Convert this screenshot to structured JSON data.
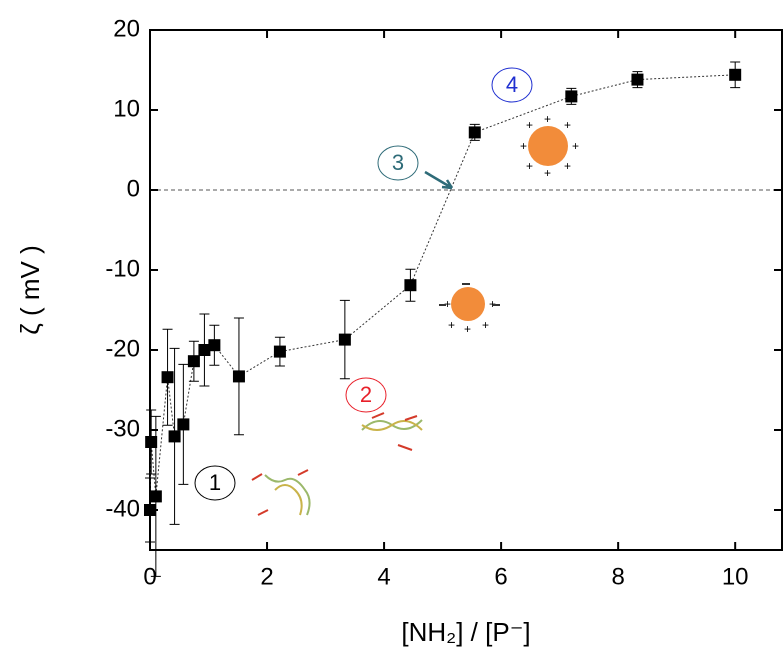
{
  "chart_data": {
    "type": "scatter",
    "x_label": "[NH₂] / [P⁻]",
    "y_label": "ζ ( mV )",
    "x": [
      0.0,
      0.02,
      0.1,
      0.3,
      0.42,
      0.57,
      0.75,
      0.93,
      1.1,
      1.52,
      2.22,
      3.33,
      4.45,
      5.55,
      7.2,
      8.33,
      10.0
    ],
    "series": [
      {
        "color": "#000000",
        "values": [
          -40.0,
          -31.5,
          -38.3,
          -23.4,
          -30.8,
          -29.3,
          -21.4,
          -20.0,
          -19.4,
          -23.3,
          -20.2,
          -18.7,
          -11.9,
          7.2,
          11.7,
          13.8,
          14.4
        ],
        "errors": [
          4,
          4,
          10,
          6,
          11,
          7.5,
          2.5,
          4.5,
          2.5,
          7.3,
          1.8,
          4.9,
          2,
          1,
          1,
          1,
          1.6
        ]
      }
    ],
    "xlim": [
      0,
      10.8
    ],
    "ylim": [
      -45,
      20
    ],
    "xticks": [
      0,
      2,
      4,
      6,
      8,
      10
    ],
    "yticks": [
      20,
      10,
      0,
      -10,
      -20,
      -30,
      -40
    ],
    "reference_line": 0,
    "annotations": [
      {
        "text": "1",
        "color": "#000000"
      },
      {
        "text": "2",
        "color": "#e8202a"
      },
      {
        "text": "3",
        "color": "#2e6b78"
      },
      {
        "text": "4",
        "color": "#1f2fd0"
      }
    ]
  }
}
